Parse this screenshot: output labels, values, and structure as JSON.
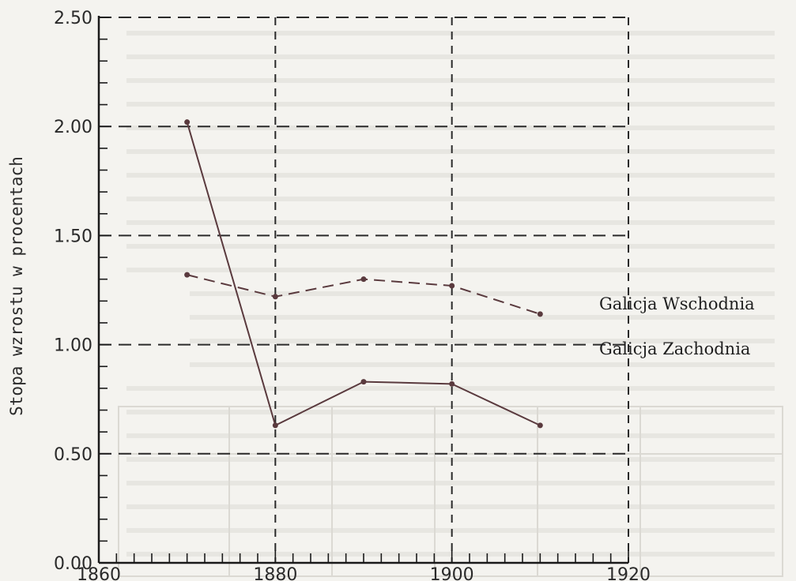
{
  "chart_data": {
    "type": "line",
    "title": "",
    "xlabel": "",
    "ylabel": "Stopa wzrostu w procentach",
    "xlim": [
      1860,
      1920
    ],
    "ylim": [
      0.0,
      2.5
    ],
    "x_ticks": [
      "1860",
      "1880",
      "1900",
      "1920"
    ],
    "y_ticks": [
      "0.00",
      "0.50",
      "1.00",
      "1.50",
      "2.00",
      "2.50"
    ],
    "grid": true,
    "series": [
      {
        "name": "Galicja Wschodnia",
        "style": "dashed",
        "x": [
          1870,
          1880,
          1890,
          1900,
          1910
        ],
        "y": [
          1.32,
          1.22,
          1.3,
          1.27,
          1.14
        ]
      },
      {
        "name": "Galicja Zachodnia",
        "style": "solid",
        "x": [
          1870,
          1880,
          1890,
          1900,
          1910
        ],
        "y": [
          2.02,
          0.63,
          0.83,
          0.82,
          0.63
        ]
      }
    ],
    "colors": {
      "line": "#5a3a3e",
      "grid": "#2a2a2a",
      "axis": "#1a1a1a",
      "text": "#2a2a2a"
    }
  }
}
